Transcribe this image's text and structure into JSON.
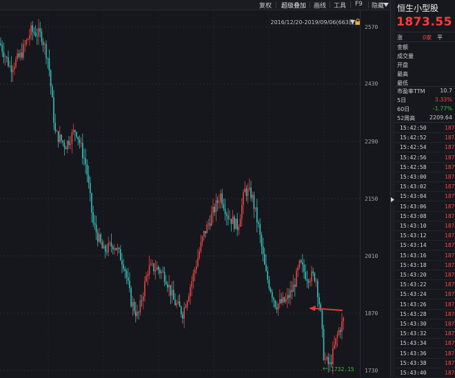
{
  "toolbar": {
    "buttons": [
      "复权",
      "超级叠加",
      "画线",
      "工具",
      "F9",
      "隐藏"
    ],
    "more_icon": "dropdown-arrow"
  },
  "chart": {
    "range_label": "2016/12/20-2019/09/06(663日)",
    "low_label": "1732.15",
    "y_ticks": [
      "2570",
      "2430",
      "2290",
      "2150",
      "2010",
      "1870",
      "1730"
    ],
    "annotation_arrow_color": "#e83a3a",
    "up_color": "#e84646",
    "down_color": "#36c2c0"
  },
  "chart_data": {
    "type": "candlestick",
    "x_range": [
      "2016/12/20",
      "2019/09/06"
    ],
    "ylim": [
      1720,
      2600
    ],
    "y_ticks": [
      2570,
      2430,
      2290,
      2150,
      2010,
      1870,
      1730
    ],
    "approx_path": [
      [
        0,
        2530
      ],
      [
        15,
        2470
      ],
      [
        30,
        2500
      ],
      [
        45,
        2560
      ],
      [
        60,
        2550
      ],
      [
        70,
        2490
      ],
      [
        80,
        2310
      ],
      [
        95,
        2280
      ],
      [
        110,
        2320
      ],
      [
        125,
        2230
      ],
      [
        135,
        2090
      ],
      [
        150,
        2020
      ],
      [
        165,
        2040
      ],
      [
        180,
        1990
      ],
      [
        190,
        1900
      ],
      [
        200,
        1860
      ],
      [
        215,
        1980
      ],
      [
        228,
        1980
      ],
      [
        240,
        1960
      ],
      [
        252,
        1900
      ],
      [
        265,
        1870
      ],
      [
        280,
        1960
      ],
      [
        295,
        2060
      ],
      [
        310,
        2120
      ],
      [
        320,
        2160
      ],
      [
        330,
        2110
      ],
      [
        345,
        2080
      ],
      [
        355,
        2170
      ],
      [
        365,
        2160
      ],
      [
        375,
        2080
      ],
      [
        385,
        1970
      ],
      [
        400,
        1890
      ],
      [
        415,
        1900
      ],
      [
        425,
        1930
      ],
      [
        435,
        1990
      ],
      [
        445,
        1960
      ],
      [
        458,
        1960
      ],
      [
        465,
        1870
      ],
      [
        470,
        1760
      ],
      [
        478,
        1740
      ],
      [
        490,
        1820
      ],
      [
        500,
        1860
      ]
    ],
    "low": 1732.15
  },
  "panel": {
    "title": "恒生小型股",
    "price": "1873.55",
    "change_label": "涨",
    "change_count": "0家",
    "flat_label": "平",
    "fields": [
      {
        "label": "金额",
        "value": ""
      },
      {
        "label": "成交量",
        "value": ""
      },
      {
        "label": "开盘",
        "value": ""
      },
      {
        "label": "最高",
        "value": ""
      },
      {
        "label": "最低",
        "value": ""
      },
      {
        "label": "市盈率TTM",
        "value": "10.7"
      },
      {
        "label": "5日",
        "value": "3.33%"
      },
      {
        "label": "60日",
        "value": "-1.77%"
      },
      {
        "label": "52周高",
        "value": "2209.64"
      }
    ],
    "five_day_color": "#ff4545",
    "sixty_day_color": "#35c43a",
    "ticks": [
      {
        "time": "15:42:50",
        "val": "187"
      },
      {
        "time": "15:42:52",
        "val": "187"
      },
      {
        "time": "15:42:54",
        "val": "187"
      },
      {
        "time": "15:42:56",
        "val": "187"
      },
      {
        "time": "15:42:58",
        "val": "187"
      },
      {
        "time": "15:43:00",
        "val": "187"
      },
      {
        "time": "15:43:02",
        "val": "187"
      },
      {
        "time": "15:43:04",
        "val": "187"
      },
      {
        "time": "15:43:06",
        "val": "187"
      },
      {
        "time": "15:43:08",
        "val": "187"
      },
      {
        "time": "15:43:10",
        "val": "187"
      },
      {
        "time": "15:43:12",
        "val": "187"
      },
      {
        "time": "15:43:14",
        "val": "187"
      },
      {
        "time": "15:43:16",
        "val": "187"
      },
      {
        "time": "15:43:18",
        "val": "187"
      },
      {
        "time": "15:43:20",
        "val": "187"
      },
      {
        "time": "15:43:22",
        "val": "187"
      },
      {
        "time": "15:43:24",
        "val": "187"
      },
      {
        "time": "15:43:26",
        "val": "187"
      },
      {
        "time": "15:43:28",
        "val": "187"
      },
      {
        "time": "15:43:30",
        "val": "187"
      },
      {
        "time": "15:43:32",
        "val": "187"
      },
      {
        "time": "15:43:34",
        "val": "187"
      },
      {
        "time": "15:43:36",
        "val": "187"
      },
      {
        "time": "15:43:38",
        "val": "187"
      },
      {
        "time": "15:43:40",
        "val": "187"
      }
    ]
  }
}
